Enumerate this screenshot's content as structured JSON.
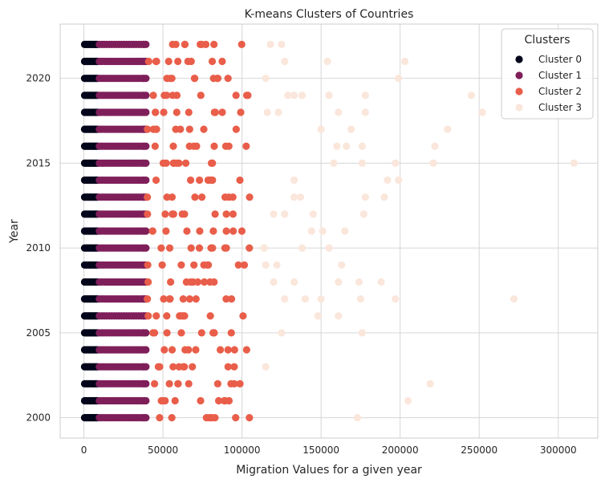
{
  "chart_data": {
    "type": "scatter",
    "title": "K-means Clusters of Countries",
    "xlabel": "Migration Values for a given year",
    "ylabel": "Year",
    "xlim": [
      -15000,
      325000
    ],
    "ylim": [
      1998.8,
      2023.2
    ],
    "x_ticks": [
      0,
      50000,
      100000,
      150000,
      200000,
      250000,
      300000
    ],
    "y_ticks": [
      2000,
      2005,
      2010,
      2015,
      2020
    ],
    "years": [
      2000,
      2001,
      2002,
      2003,
      2004,
      2005,
      2006,
      2007,
      2008,
      2009,
      2010,
      2011,
      2012,
      2013,
      2014,
      2015,
      2016,
      2017,
      2018,
      2019,
      2020,
      2021,
      2022
    ],
    "grid": true,
    "legend": {
      "title": "Clusters",
      "position": "upper right"
    },
    "series": [
      {
        "name": "Cluster 0",
        "color": "#03051a",
        "band": [
          0,
          9000
        ],
        "per_year": 10
      },
      {
        "name": "Cluster 1",
        "color": "#7f1f5a",
        "band": [
          9000,
          40000
        ],
        "per_year": 20
      },
      {
        "name": "Cluster 2",
        "color": "#e95e4a",
        "band": [
          40000,
          105000
        ],
        "per_year": 9
      },
      {
        "name": "Cluster 3",
        "color": "#fae6db",
        "points": [
          [
            173000,
            2000
          ],
          [
            205000,
            2001
          ],
          [
            219000,
            2002
          ],
          [
            115000,
            2003
          ],
          [
            176000,
            2005
          ],
          [
            125000,
            2005
          ],
          [
            148000,
            2006
          ],
          [
            161000,
            2006
          ],
          [
            272000,
            2007
          ],
          [
            197000,
            2007
          ],
          [
            175000,
            2007
          ],
          [
            140000,
            2007
          ],
          [
            150000,
            2007
          ],
          [
            127000,
            2007
          ],
          [
            161000,
            2008
          ],
          [
            174000,
            2008
          ],
          [
            188000,
            2008
          ],
          [
            120000,
            2008
          ],
          [
            133000,
            2008
          ],
          [
            115000,
            2009
          ],
          [
            122000,
            2009
          ],
          [
            163000,
            2009
          ],
          [
            138000,
            2010
          ],
          [
            155000,
            2010
          ],
          [
            114000,
            2010
          ],
          [
            144000,
            2011
          ],
          [
            151000,
            2011
          ],
          [
            165000,
            2011
          ],
          [
            120000,
            2012
          ],
          [
            127000,
            2012
          ],
          [
            145000,
            2012
          ],
          [
            177000,
            2012
          ],
          [
            133000,
            2013
          ],
          [
            137000,
            2013
          ],
          [
            178000,
            2013
          ],
          [
            190000,
            2013
          ],
          [
            133000,
            2014
          ],
          [
            192000,
            2014
          ],
          [
            199000,
            2014
          ],
          [
            310000,
            2015
          ],
          [
            221000,
            2015
          ],
          [
            197000,
            2015
          ],
          [
            176000,
            2015
          ],
          [
            158000,
            2015
          ],
          [
            160000,
            2016
          ],
          [
            166000,
            2016
          ],
          [
            176000,
            2016
          ],
          [
            222000,
            2016
          ],
          [
            230000,
            2017
          ],
          [
            150000,
            2017
          ],
          [
            169000,
            2017
          ],
          [
            252000,
            2018
          ],
          [
            161000,
            2018
          ],
          [
            178000,
            2018
          ],
          [
            116000,
            2018
          ],
          [
            123000,
            2018
          ],
          [
            245000,
            2019
          ],
          [
            129000,
            2019
          ],
          [
            133000,
            2019
          ],
          [
            138000,
            2019
          ],
          [
            155000,
            2019
          ],
          [
            178000,
            2019
          ],
          [
            199000,
            2020
          ],
          [
            115000,
            2020
          ],
          [
            154000,
            2021
          ],
          [
            127000,
            2021
          ],
          [
            203000,
            2021
          ],
          [
            118000,
            2022
          ],
          [
            125000,
            2022
          ]
        ]
      }
    ]
  }
}
